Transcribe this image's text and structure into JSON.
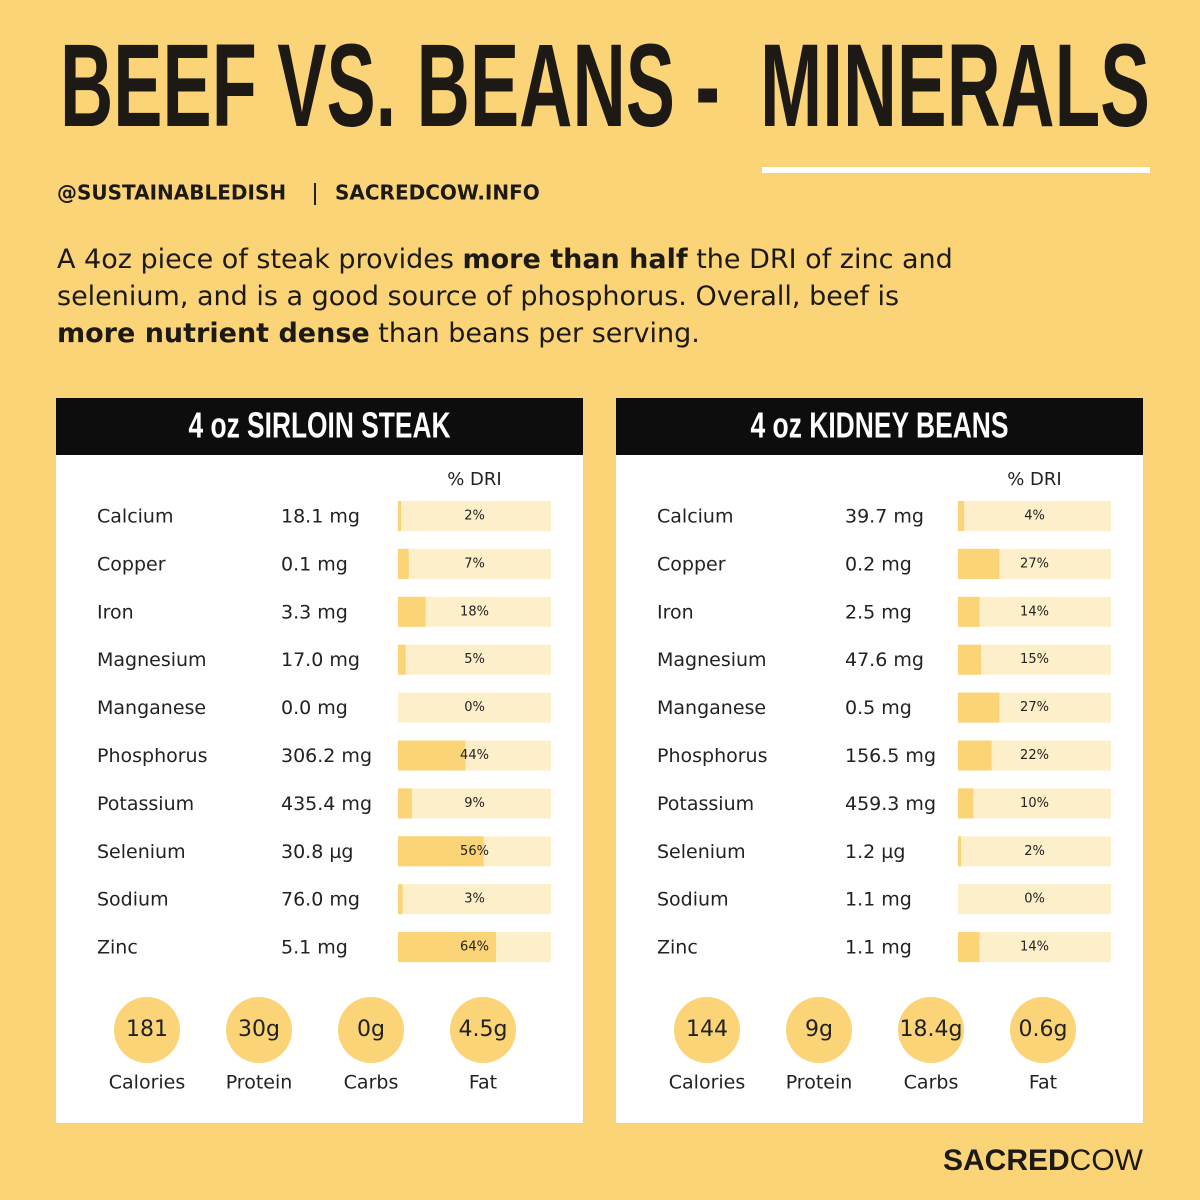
{
  "header": {
    "title": "BEEF VS. BEANS -",
    "title_highlight": "MINERALS",
    "handle": "@SUSTAINABLEDISH",
    "site": "SACREDCOW.INFO"
  },
  "intro": [
    [
      {
        "text": "A 4oz piece of steak provides ",
        "bold": false
      },
      {
        "text": "more than half",
        "bold": true
      },
      {
        "text": " the DRI of zinc and",
        "bold": false
      }
    ],
    [
      {
        "text": "selenium, and is a good source of phosphorus. Overall, beef is",
        "bold": false
      }
    ],
    [
      {
        "text": "more nutrient dense",
        "bold": true
      },
      {
        "text": " than beans per serving.",
        "bold": false
      }
    ]
  ],
  "dri_header": "% DRI",
  "dri_range": [
    0,
    100
  ],
  "panels": [
    {
      "title": "4 oz SIRLOIN STEAK",
      "rows": [
        {
          "name": "Calcium",
          "amount": "18.1 mg",
          "dri": 2,
          "dri_label": "2%"
        },
        {
          "name": "Copper",
          "amount": "0.1 mg",
          "dri": 7,
          "dri_label": "7%"
        },
        {
          "name": "Iron",
          "amount": "3.3 mg",
          "dri": 18,
          "dri_label": "18%"
        },
        {
          "name": "Magnesium",
          "amount": "17.0 mg",
          "dri": 5,
          "dri_label": "5%"
        },
        {
          "name": "Manganese",
          "amount": "0.0 mg",
          "dri": 0,
          "dri_label": "0%"
        },
        {
          "name": "Phosphorus",
          "amount": "306.2 mg",
          "dri": 44,
          "dri_label": "44%"
        },
        {
          "name": "Potassium",
          "amount": "435.4 mg",
          "dri": 9,
          "dri_label": "9%"
        },
        {
          "name": "Selenium",
          "amount": "30.8 µg",
          "dri": 56,
          "dri_label": "56%"
        },
        {
          "name": "Sodium",
          "amount": "76.0 mg",
          "dri": 3,
          "dri_label": "3%"
        },
        {
          "name": "Zinc",
          "amount": "5.1 mg",
          "dri": 64,
          "dri_label": "64%"
        }
      ],
      "summary": [
        {
          "value": "181",
          "label": "Calories"
        },
        {
          "value": "30g",
          "label": "Protein"
        },
        {
          "value": "0g",
          "label": "Carbs"
        },
        {
          "value": "4.5g",
          "label": "Fat"
        }
      ]
    },
    {
      "title": "4 oz KIDNEY BEANS",
      "rows": [
        {
          "name": "Calcium",
          "amount": "39.7 mg",
          "dri": 4,
          "dri_label": "4%"
        },
        {
          "name": "Copper",
          "amount": "0.2 mg",
          "dri": 27,
          "dri_label": "27%"
        },
        {
          "name": "Iron",
          "amount": "2.5 mg",
          "dri": 14,
          "dri_label": "14%"
        },
        {
          "name": "Magnesium",
          "amount": "47.6 mg",
          "dri": 15,
          "dri_label": "15%"
        },
        {
          "name": "Manganese",
          "amount": "0.5 mg",
          "dri": 27,
          "dri_label": "27%"
        },
        {
          "name": "Phosphorus",
          "amount": "156.5 mg",
          "dri": 22,
          "dri_label": "22%"
        },
        {
          "name": "Potassium",
          "amount": "459.3 mg",
          "dri": 10,
          "dri_label": "10%"
        },
        {
          "name": "Selenium",
          "amount": "1.2 µg",
          "dri": 2,
          "dri_label": "2%"
        },
        {
          "name": "Sodium",
          "amount": "1.1 mg",
          "dri": 0,
          "dri_label": "0%"
        },
        {
          "name": "Zinc",
          "amount": "1.1 mg",
          "dri": 14,
          "dri_label": "14%"
        }
      ],
      "summary": [
        {
          "value": "144",
          "label": "Calories"
        },
        {
          "value": "9g",
          "label": "Protein"
        },
        {
          "value": "18.4g",
          "label": "Carbs"
        },
        {
          "value": "0.6g",
          "label": "Fat"
        }
      ]
    }
  ],
  "footer": {
    "brand_bold": "SACRED",
    "brand_light": "COW"
  }
}
